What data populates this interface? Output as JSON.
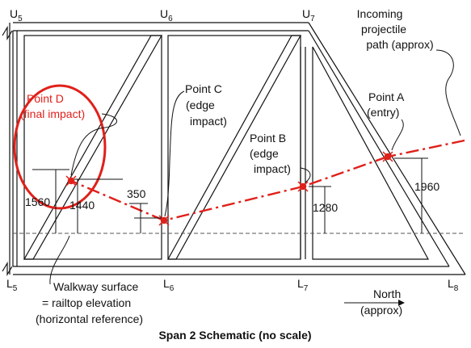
{
  "nodes": {
    "u5": {
      "base": "U",
      "sub": "5"
    },
    "u6": {
      "base": "U",
      "sub": "6"
    },
    "u7": {
      "base": "U",
      "sub": "7"
    },
    "l5": {
      "base": "L",
      "sub": "5"
    },
    "l6": {
      "base": "L",
      "sub": "6"
    },
    "l7": {
      "base": "L",
      "sub": "7"
    },
    "l8": {
      "base": "L",
      "sub": "8"
    }
  },
  "incoming": {
    "line1": "Incoming",
    "line2": "projectile",
    "line3": "path (approx)"
  },
  "point_a": {
    "line1": "Point A",
    "line2": "(entry)"
  },
  "point_b": {
    "line1": "Point B",
    "line2": "(edge",
    "line3": "impact)"
  },
  "point_c": {
    "line1": "Point C",
    "line2": "(edge",
    "line3": "impact)"
  },
  "point_d": {
    "line1": "Point D",
    "line2": "(final impact)"
  },
  "dimensions": {
    "d1960": "1960",
    "d1280": "1280",
    "d350": "350",
    "d1440": "1440",
    "d1560": "1560"
  },
  "walkway": {
    "line1": "Walkway surface",
    "line2": "= railtop elevation",
    "line3": "(horizontal reference)"
  },
  "north": {
    "line1": "North",
    "line2": "(approx)"
  },
  "caption": "Span 2 Schematic (no scale)",
  "colors": {
    "impact_path": "#e0201a",
    "structure": "#111111"
  }
}
